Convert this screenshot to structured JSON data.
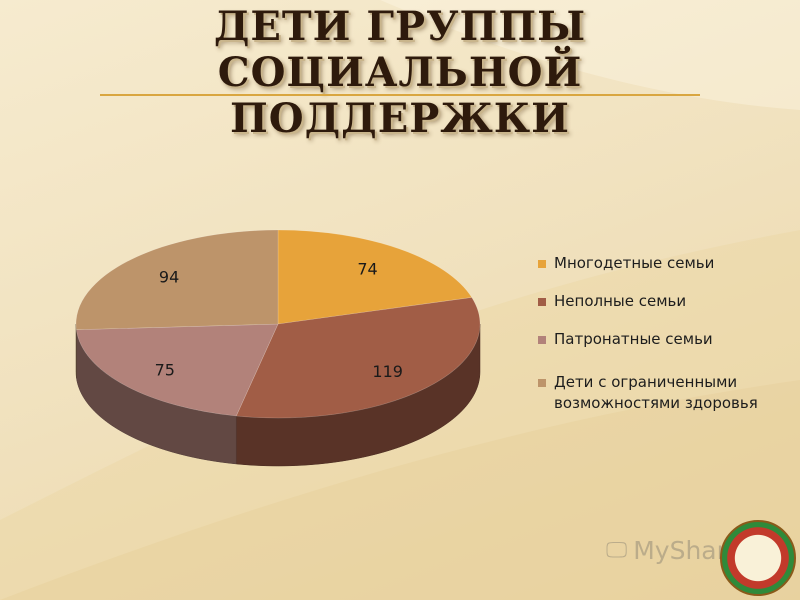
{
  "title": "ДЕТИ ГРУППЫ СОЦИАЛЬНОЙ ПОДДЕРЖКИ",
  "watermark": {
    "text": "MyShared",
    "icon": "monitor-icon"
  },
  "badge": {
    "icon": "school-emblem-icon"
  },
  "chart_data": {
    "type": "pie",
    "style": "3d",
    "title": "",
    "legend_position": "right",
    "series": [
      {
        "label": "Многодетные семьи",
        "value": 74,
        "color": "#e7a33a"
      },
      {
        "label": "Неполные семьи",
        "value": 119,
        "color": "#a15d46"
      },
      {
        "label": "Патронатные семьи",
        "value": 75,
        "color": "#b2827a"
      },
      {
        "label": "Дети с ограниченными возможностями здоровья",
        "value": 94,
        "color": "#bd946a"
      }
    ]
  }
}
